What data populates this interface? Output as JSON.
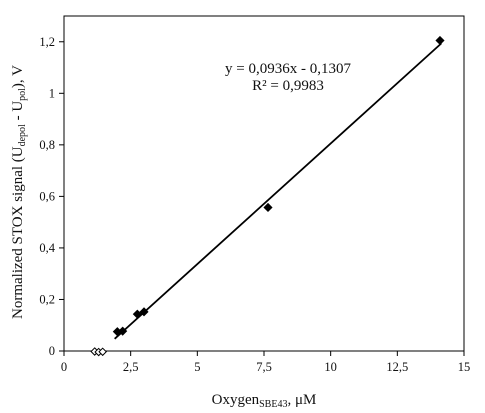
{
  "chart_data": {
    "type": "scatter",
    "xlim": [
      0,
      15
    ],
    "ylim": [
      0,
      1.3
    ],
    "x_ticks": [
      0,
      2.5,
      5,
      7.5,
      10,
      12.5,
      15
    ],
    "y_ticks": [
      0,
      0.2,
      0.4,
      0.6,
      0.8,
      1,
      1.2
    ],
    "x_tick_labels": [
      "0",
      "2,5",
      "5",
      "7,5",
      "10",
      "12,5",
      "15"
    ],
    "y_tick_labels": [
      "0",
      "0,2",
      "0,4",
      "0,6",
      "0,8",
      "1",
      "1,2"
    ],
    "xlabel": {
      "main": "Oxygen",
      "sub": "SBE43",
      "tail": ", μM"
    },
    "ylabel": {
      "p1": "Normalized STOX signal (U",
      "sub1": "depol",
      "p2": " - U",
      "sub2": "pol",
      "p3": "), V"
    },
    "grid": false,
    "series": [
      {
        "marker": "filled-diamond",
        "points": [
          {
            "x": 2.0,
            "y": 0.075
          },
          {
            "x": 2.2,
            "y": 0.077
          },
          {
            "x": 2.75,
            "y": 0.143
          },
          {
            "x": 3.0,
            "y": 0.152
          },
          {
            "x": 7.65,
            "y": 0.557
          },
          {
            "x": 14.1,
            "y": 1.205
          }
        ]
      },
      {
        "marker": "open-diamond",
        "points": [
          {
            "x": 1.15,
            "y": -0.002
          },
          {
            "x": 1.3,
            "y": -0.004
          },
          {
            "x": 1.45,
            "y": -0.003
          }
        ]
      }
    ],
    "trendline": {
      "slope": 0.0936,
      "intercept": -0.1307,
      "x_range": [
        1.9,
        14.15
      ],
      "equation": "y = 0,0936x - 0,1307",
      "r2": "R² = 0,9983"
    }
  }
}
